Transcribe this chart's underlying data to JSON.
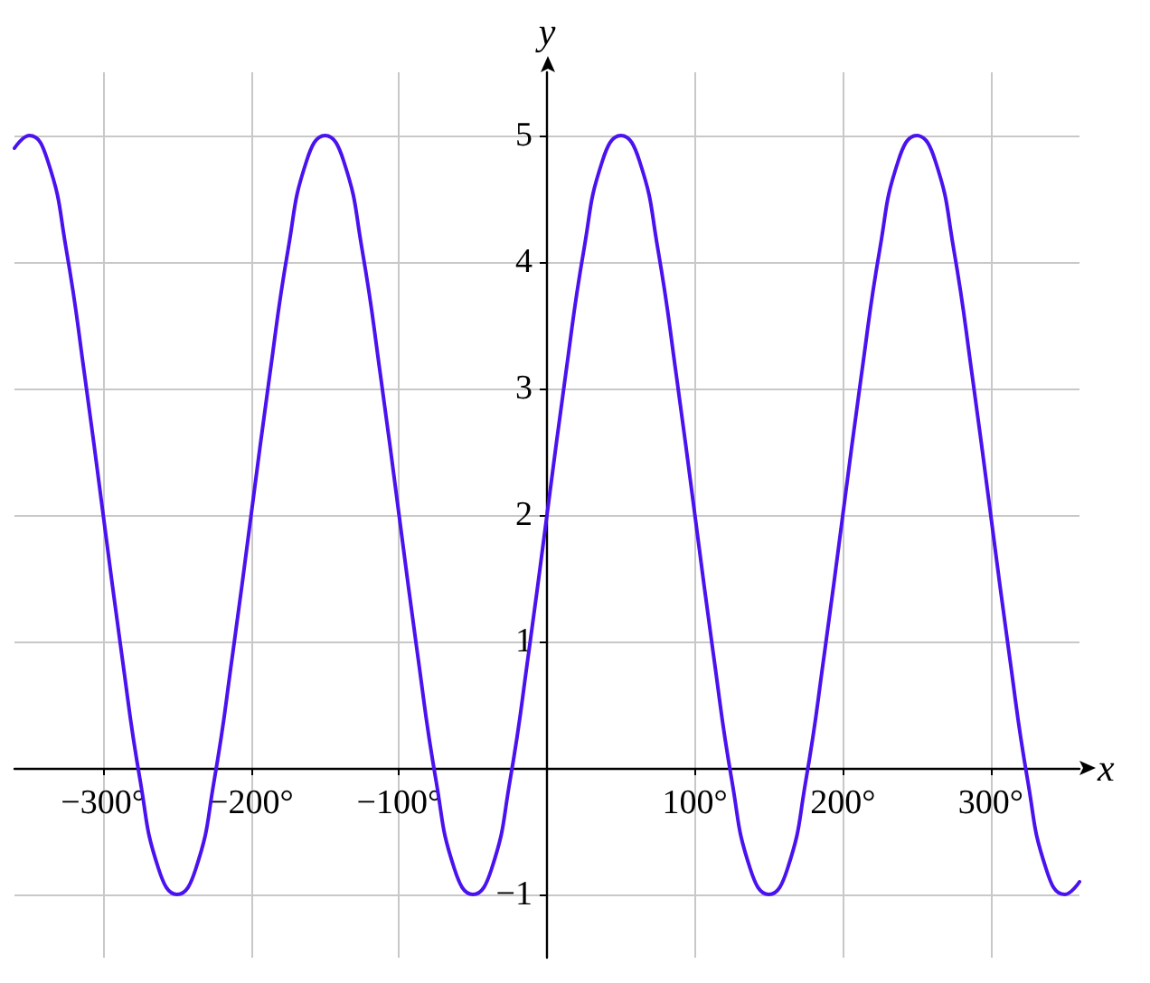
{
  "chart_data": {
    "type": "line",
    "xlabel": "x",
    "ylabel": "y",
    "x": [
      -360,
      -350,
      -337.5,
      -325,
      -312.5,
      -300,
      -287.5,
      -275,
      -262.5,
      -250,
      -237.5,
      -225,
      -212.5,
      -200,
      -187.5,
      -175,
      -162.5,
      -150,
      -137.5,
      -125,
      -112.5,
      -100,
      -87.5,
      -75,
      -62.5,
      -50,
      -37.5,
      -25,
      -12.5,
      0,
      12.5,
      25,
      37.5,
      50,
      62.5,
      75,
      87.5,
      100,
      112.5,
      125,
      137.5,
      150,
      162.5,
      175,
      187.5,
      200,
      212.5,
      225,
      237.5,
      250,
      262.5,
      275,
      287.5,
      300,
      312.5,
      325,
      337.5,
      350,
      360
    ],
    "series": [
      {
        "color": "#4a12ee",
        "values": [
          4.9,
          5,
          4.8,
          4.1,
          3.1,
          2,
          0.9,
          -0.1,
          -0.8,
          -1,
          -0.8,
          -0.1,
          0.9,
          2,
          3.1,
          4.1,
          4.8,
          5,
          4.8,
          4.1,
          3.1,
          2,
          0.9,
          -0.1,
          -0.8,
          -1,
          -0.8,
          -0.1,
          0.9,
          2,
          3.1,
          4.1,
          4.8,
          5,
          4.8,
          4.1,
          3.1,
          2,
          0.9,
          -0.1,
          -0.8,
          -1,
          -0.8,
          -0.1,
          0.9,
          2,
          3.1,
          4.1,
          4.8,
          5,
          4.8,
          4.1,
          3.1,
          2,
          0.9,
          -0.1,
          -0.8,
          -1,
          -0.9
        ]
      }
    ],
    "xlim": [
      -360,
      360
    ],
    "xticks": [
      {
        "value": -300,
        "label": "−300°"
      },
      {
        "value": -200,
        "label": "−200°"
      },
      {
        "value": -100,
        "label": "−100°"
      },
      {
        "value": 0,
        "label": null
      },
      {
        "value": 100,
        "label": "100°"
      },
      {
        "value": 200,
        "label": "200°"
      },
      {
        "value": 300,
        "label": "300°"
      }
    ],
    "ylim": [
      -1.5,
      5.5
    ],
    "yticks": [
      {
        "value": -1,
        "label": "−1"
      },
      {
        "value": 0,
        "label": null
      },
      1,
      2,
      3,
      4,
      5
    ],
    "grid": true,
    "marker": "none",
    "line_style": "solid"
  }
}
